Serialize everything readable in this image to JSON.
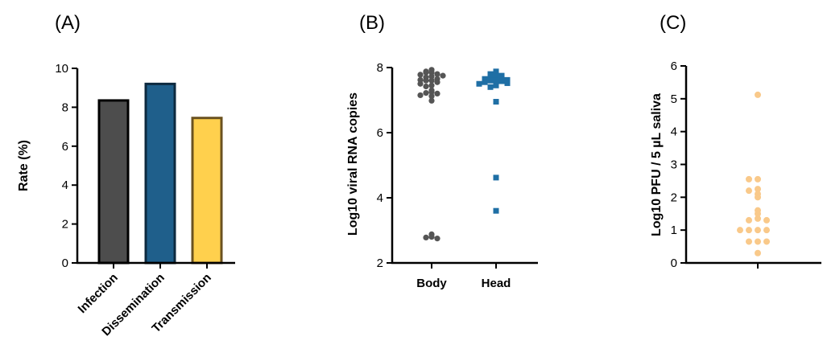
{
  "chart_data": [
    {
      "panel": "(A)",
      "type": "bar",
      "ylabel": "Rate (%)",
      "ylim": [
        0,
        10
      ],
      "yticks": [
        0,
        2,
        4,
        6,
        8,
        10
      ],
      "categories": [
        "Infection",
        "Dissemination",
        "Transmission"
      ],
      "values": [
        8.35,
        9.2,
        7.45
      ],
      "colors": [
        "#4d4d4d",
        "#1f5f8b",
        "#ffd04d"
      ],
      "edge_colors": [
        "#000000",
        "#0d2a3f",
        "#6b5220"
      ]
    },
    {
      "panel": "(B)",
      "type": "scatter",
      "ylabel": "Log10 viral RNA copies",
      "ylim": [
        2,
        8
      ],
      "yticks": [
        2,
        4,
        6,
        8
      ],
      "categories": [
        "Body",
        "Head"
      ],
      "colors": [
        "#555555",
        "#1f6fa5"
      ],
      "markers": [
        "circle",
        "square"
      ],
      "series": [
        {
          "category": "Body",
          "values": [
            7.93,
            7.88,
            7.85,
            7.85,
            7.8,
            7.78,
            7.75,
            7.73,
            7.7,
            7.65,
            7.62,
            7.6,
            7.6,
            7.55,
            7.5,
            7.45,
            7.42,
            7.3,
            7.25,
            7.22,
            7.2,
            7.15,
            7.12,
            6.98,
            2.88,
            2.8,
            2.78,
            2.75
          ]
        },
        {
          "category": "Head",
          "values": [
            7.88,
            7.82,
            7.8,
            7.75,
            7.72,
            7.7,
            7.68,
            7.65,
            7.62,
            7.6,
            7.6,
            7.58,
            7.55,
            7.52,
            7.5,
            7.45,
            7.4,
            6.95,
            4.62,
            3.6
          ]
        }
      ]
    },
    {
      "panel": "(C)",
      "type": "scatter",
      "ylabel": "Log10 PFU / 5 µL saliva",
      "ylim": [
        0,
        6
      ],
      "yticks": [
        0,
        1,
        2,
        3,
        4,
        5,
        6
      ],
      "categories": [
        ""
      ],
      "colors": [
        "#f9c98a"
      ],
      "markers": [
        "circle"
      ],
      "series": [
        {
          "category": "",
          "values": [
            5.12,
            2.55,
            2.55,
            2.25,
            2.2,
            2.1,
            2.0,
            1.6,
            1.5,
            1.35,
            1.3,
            1.3,
            1.0,
            1.0,
            1.0,
            1.0,
            0.65,
            0.65,
            0.65,
            0.3
          ]
        }
      ]
    }
  ]
}
